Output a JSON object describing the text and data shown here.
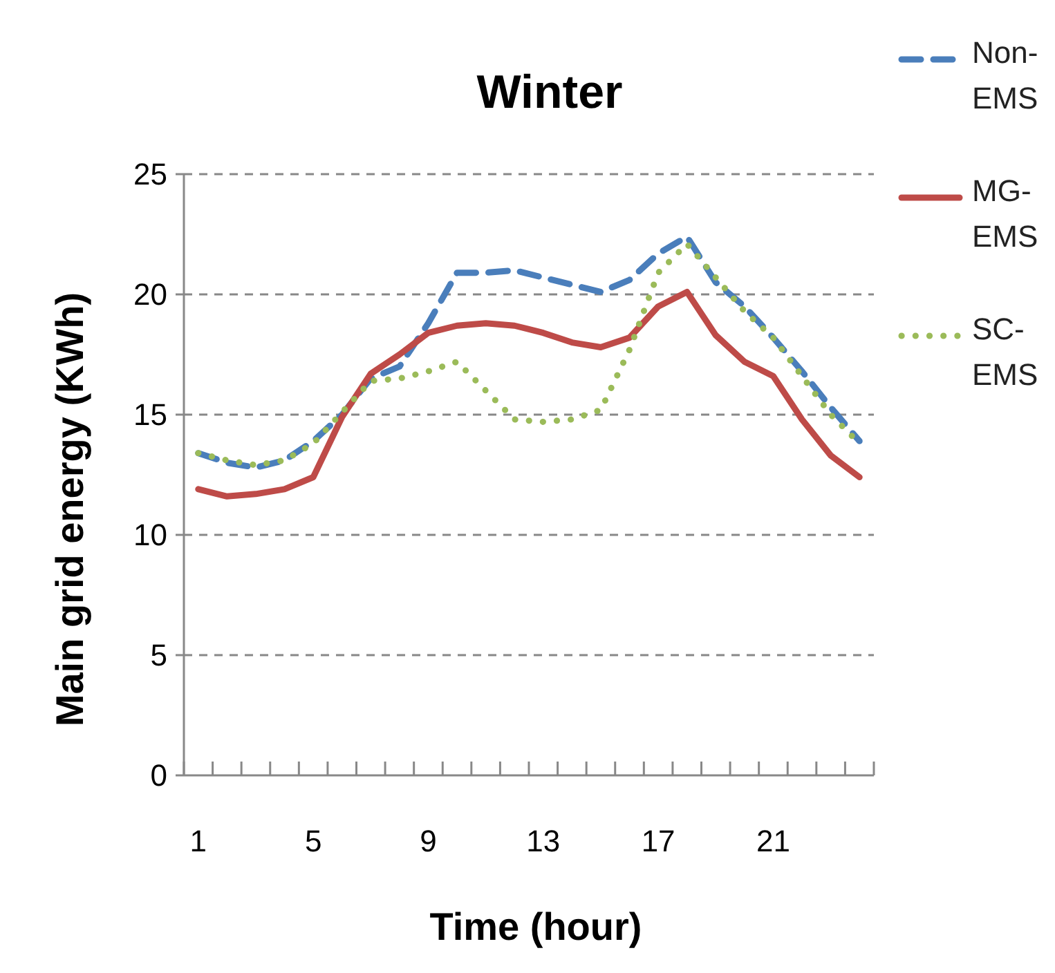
{
  "chart_data": {
    "type": "line",
    "title": "Winter",
    "xlabel": "Time (hour)",
    "ylabel": "Main grid energy (KWh)",
    "categories": [
      "1",
      null,
      null,
      null,
      "5",
      null,
      null,
      null,
      "9",
      null,
      null,
      null,
      "13",
      null,
      null,
      null,
      "17",
      null,
      null,
      null,
      "21",
      null,
      null,
      null
    ],
    "series": [
      {
        "name": "Non-EMS",
        "color": "#4a7ebb",
        "line_style": "dashed",
        "values": [
          13.4,
          13.0,
          12.8,
          13.1,
          13.9,
          15.0,
          16.5,
          17.0,
          18.8,
          20.9,
          20.9,
          21.0,
          20.7,
          20.4,
          20.1,
          20.6,
          21.7,
          22.4,
          20.5,
          19.5,
          18.2,
          16.8,
          15.3,
          13.9
        ]
      },
      {
        "name": "MG-EMS",
        "color": "#be4b48",
        "line_style": "solid",
        "values": [
          11.9,
          11.6,
          11.7,
          11.9,
          12.4,
          14.9,
          16.7,
          17.5,
          18.4,
          18.7,
          18.8,
          18.7,
          18.4,
          18.0,
          17.8,
          18.2,
          19.5,
          20.1,
          18.3,
          17.2,
          16.6,
          14.8,
          13.3,
          12.4
        ]
      },
      {
        "name": "SC-EMS",
        "color": "#9bbb59",
        "line_style": "dotted",
        "values": [
          13.4,
          13.1,
          12.9,
          13.1,
          13.8,
          15.1,
          16.4,
          16.5,
          16.8,
          17.2,
          16.0,
          14.8,
          14.7,
          14.8,
          15.2,
          17.7,
          20.9,
          22.1,
          20.7,
          19.3,
          18.2,
          16.6,
          15.0,
          13.8
        ]
      }
    ],
    "ylim": [
      0,
      25
    ],
    "yticks": [
      0,
      5,
      10,
      15,
      20,
      25
    ],
    "grid": "y",
    "legend": "top right"
  }
}
